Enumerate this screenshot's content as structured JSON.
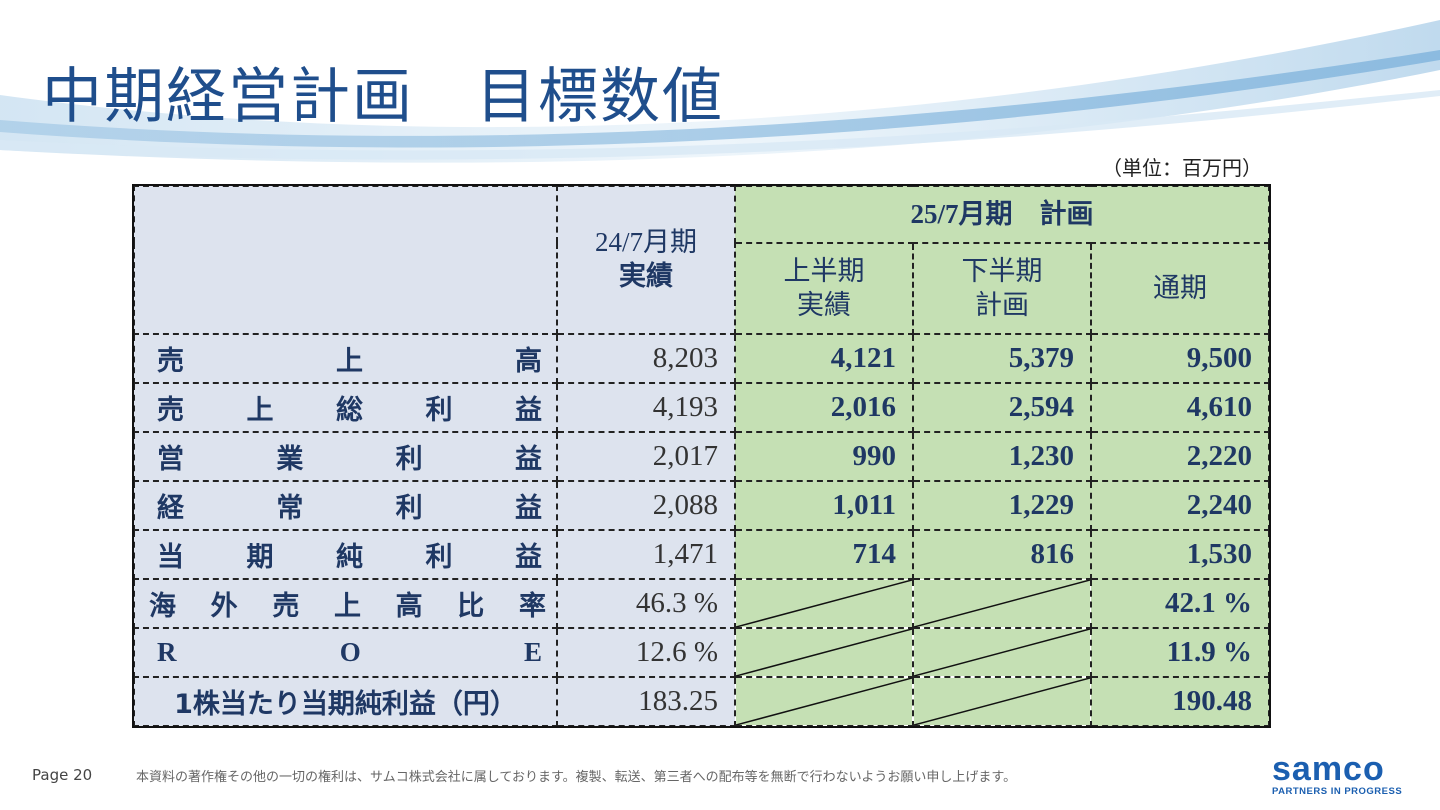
{
  "title": "中期経営計画　目標数値",
  "unit": "（単位：百万円）",
  "header": {
    "prev_period": "24/7月期",
    "prev_kind": "実績",
    "plan_group": "25/7月期　計画",
    "h1_line1": "上半期",
    "h1_line2": "実績",
    "h2_line1": "下半期",
    "h2_line2": "計画",
    "full_year": "通期"
  },
  "rows": [
    {
      "label": "売上高",
      "prev": "8,203",
      "h1": "4,121",
      "h2": "5,379",
      "full": "9,500"
    },
    {
      "label": "売上総利益",
      "prev": "4,193",
      "h1": "2,016",
      "h2": "2,594",
      "full": "4,610"
    },
    {
      "label": "営業利益",
      "prev": "2,017",
      "h1": "990",
      "h2": "1,230",
      "full": "2,220"
    },
    {
      "label": "経常利益",
      "prev": "2,088",
      "h1": "1,011",
      "h2": "1,229",
      "full": "2,240"
    },
    {
      "label": "当期純利益",
      "prev": "1,471",
      "h1": "714",
      "h2": "816",
      "full": "1,530"
    },
    {
      "label": "海外売上高比率",
      "prev": "46.3 %",
      "h1": "",
      "h2": "",
      "full": "42.1 %"
    },
    {
      "label": "ROE",
      "prev": "12.6 %",
      "h1": "",
      "h2": "",
      "full": "11.9 %"
    },
    {
      "label": "1株当たり当期純利益（円）",
      "prev": "183.25",
      "h1": "",
      "h2": "",
      "full": "190.48"
    }
  ],
  "footer": {
    "page": "Page 20",
    "copyright": "本資料の著作権その他の一切の権利は、サムコ株式会社に属しております。複製、転送、第三者への配布等を無断で行わないようお願い申し上げます。",
    "logo_text": "samco",
    "logo_tagline": "PARTNERS IN PROGRESS"
  },
  "colors": {
    "title": "#1f4e8c",
    "header_blue": "#dde3ee",
    "plan_green": "#c5e0b4",
    "logo_blue": "#1b5fb0"
  }
}
